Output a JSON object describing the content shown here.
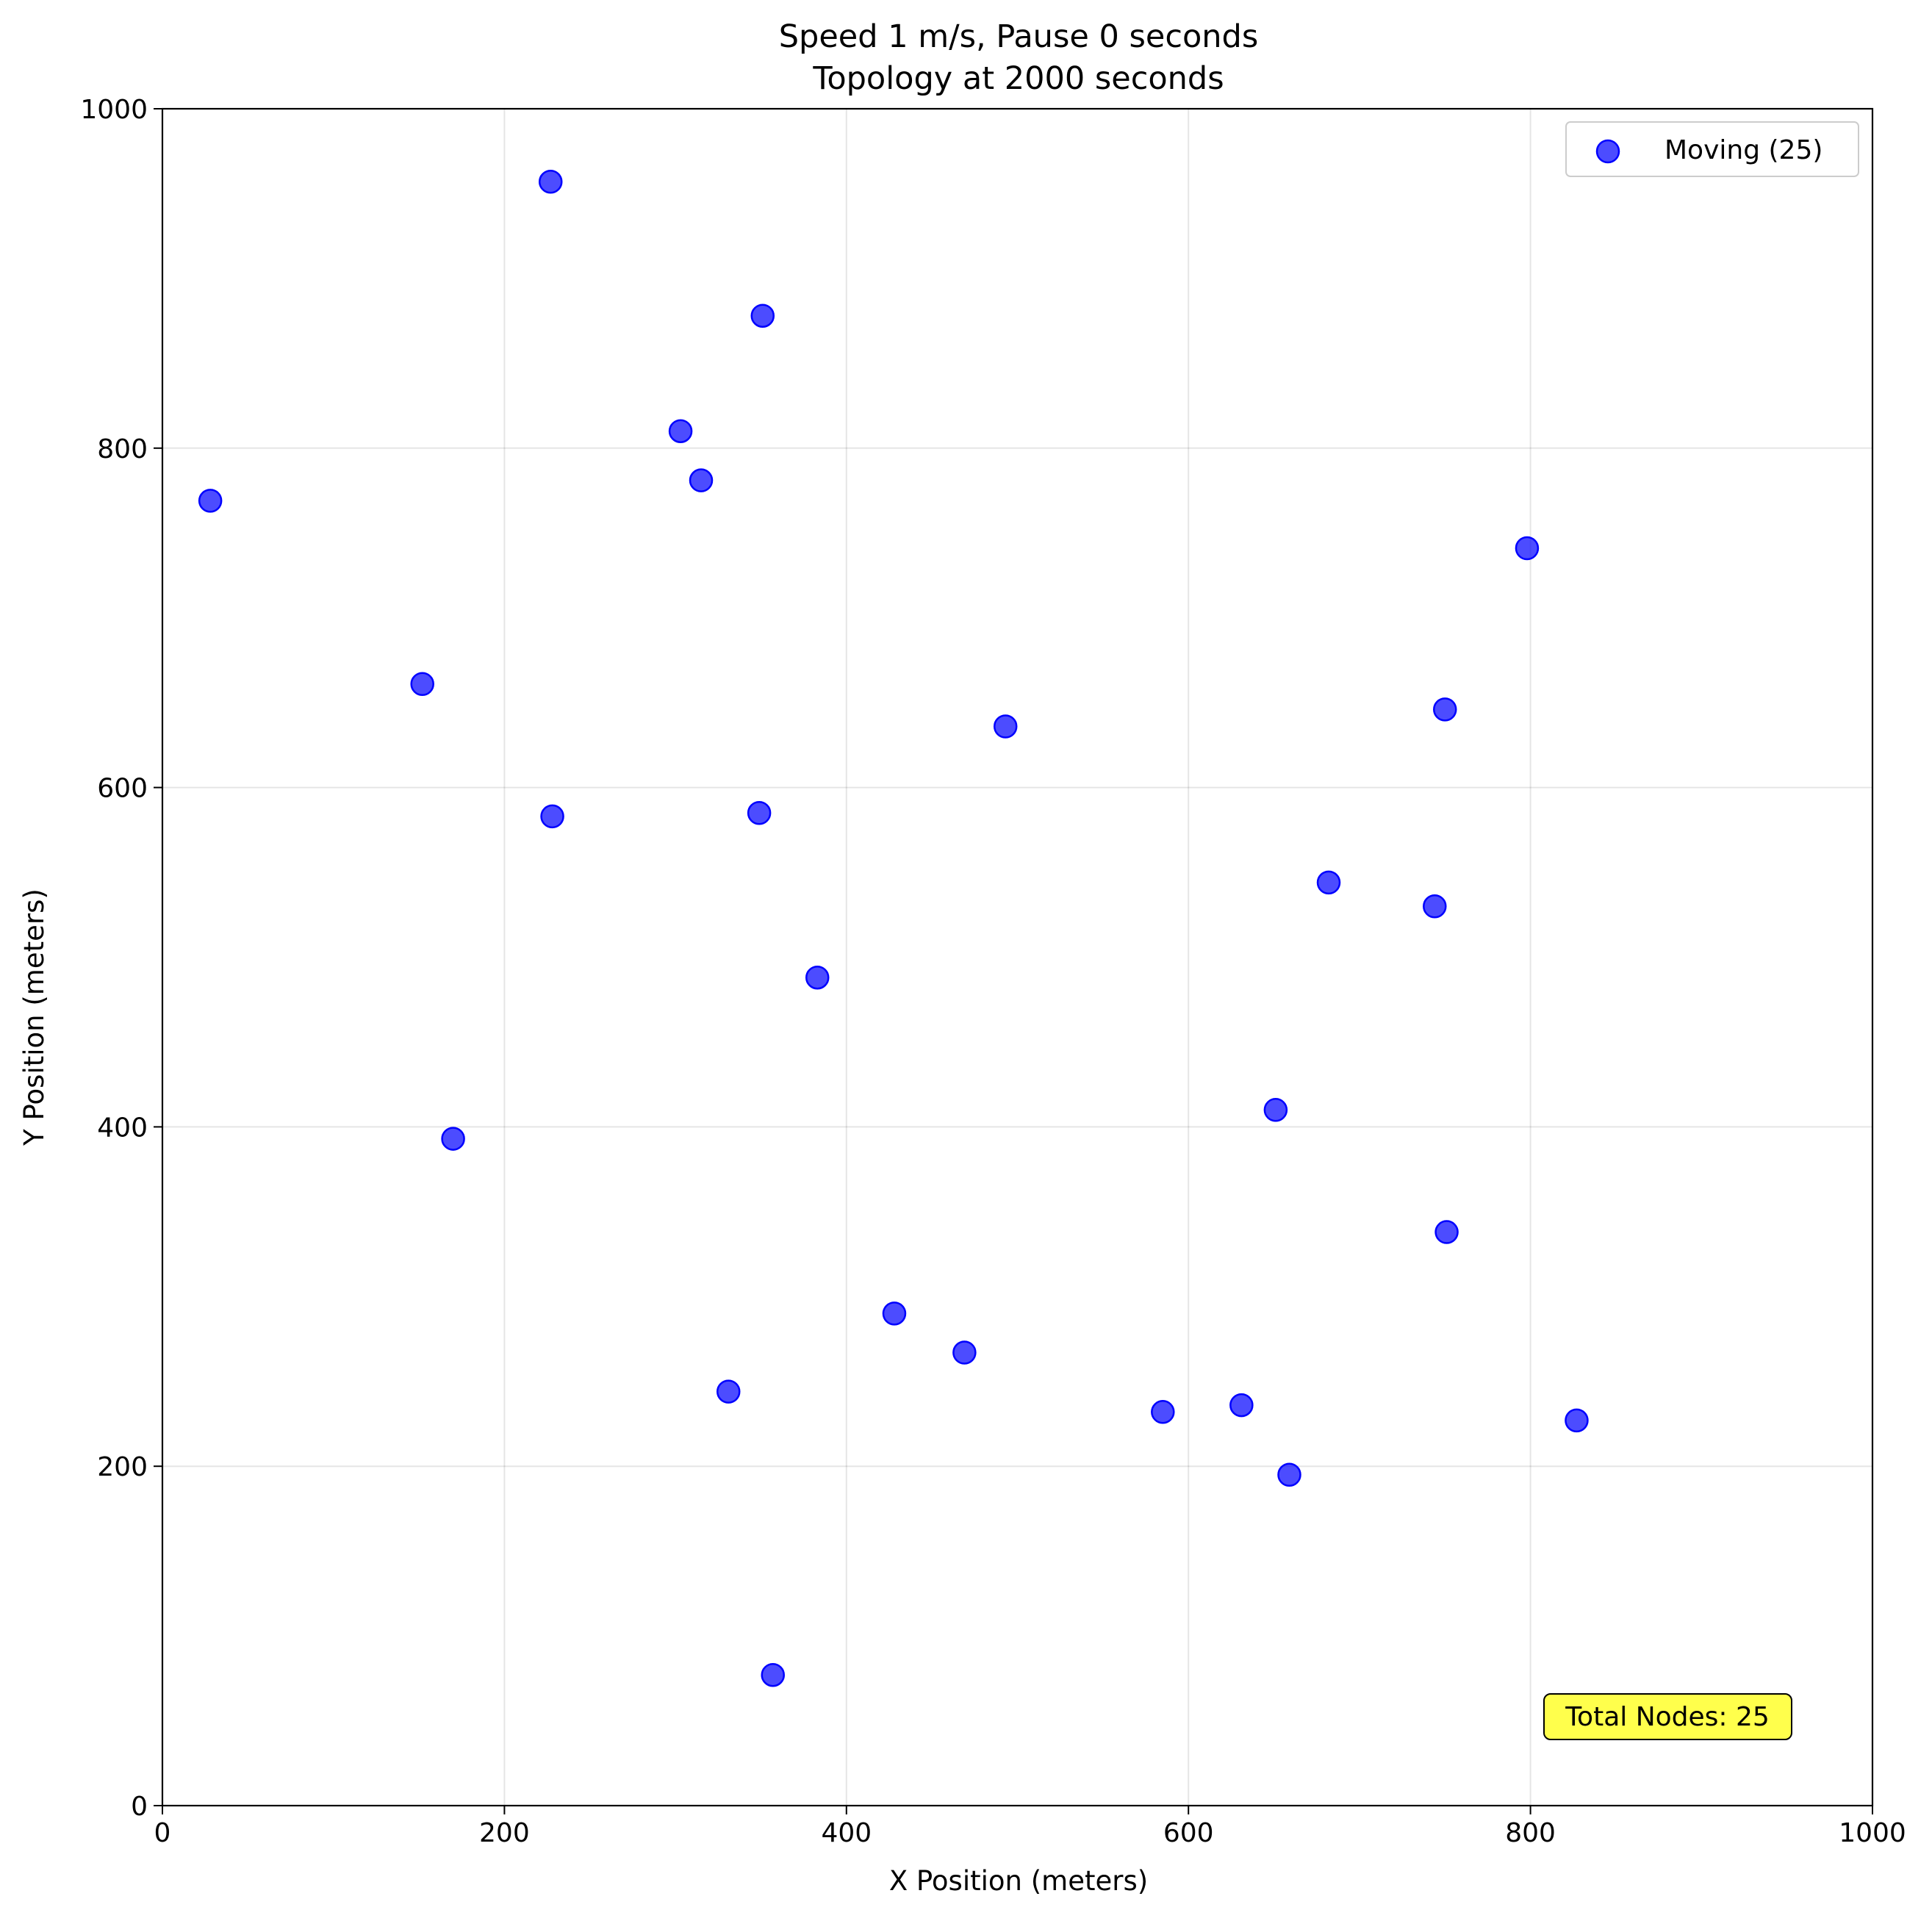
{
  "chart_data": {
    "type": "scatter",
    "title_line1": "Speed 1 m/s, Pause 0 seconds",
    "title_line2": "Topology at 2000 seconds",
    "xlabel": "X Position (meters)",
    "ylabel": "Y Position (meters)",
    "xlim": [
      0,
      1000
    ],
    "ylim": [
      0,
      1000
    ],
    "xticks": [
      0,
      200,
      400,
      600,
      800,
      1000
    ],
    "yticks": [
      0,
      200,
      400,
      600,
      800,
      1000
    ],
    "grid": true,
    "legend_position": "top-right",
    "series": [
      {
        "name": "Moving (25)",
        "color": "#0000ff",
        "points": [
          [
            227,
            957
          ],
          [
            351,
            878
          ],
          [
            303,
            810
          ],
          [
            315,
            781
          ],
          [
            28,
            769
          ],
          [
            798,
            741
          ],
          [
            152,
            661
          ],
          [
            493,
            636
          ],
          [
            750,
            646
          ],
          [
            228,
            583
          ],
          [
            349,
            585
          ],
          [
            682,
            544
          ],
          [
            744,
            530
          ],
          [
            383,
            488
          ],
          [
            651,
            410
          ],
          [
            170,
            393
          ],
          [
            751,
            338
          ],
          [
            428,
            290
          ],
          [
            469,
            267
          ],
          [
            331,
            244
          ],
          [
            585,
            232
          ],
          [
            631,
            236
          ],
          [
            827,
            227
          ],
          [
            659,
            195
          ],
          [
            357,
            77
          ]
        ]
      }
    ],
    "annotation": "Total Nodes: 25",
    "annotation_color": "#ffff00"
  }
}
